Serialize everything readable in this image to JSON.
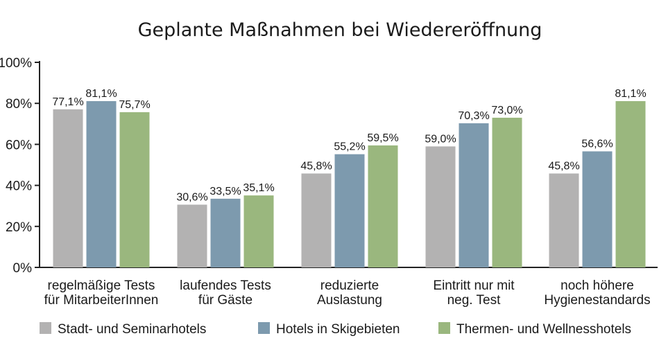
{
  "chart_data": {
    "type": "bar",
    "title": "Geplante Maßnahmen bei Wiedereröffnung",
    "xlabel": "",
    "ylabel": "",
    "ylim": [
      0,
      100
    ],
    "yticks": [
      "0%",
      "20%",
      "40%",
      "60%",
      "80%",
      "100%"
    ],
    "categories": [
      [
        "regelmäßige Tests",
        "für MitarbeiterInnen"
      ],
      [
        "laufendes Tests",
        "für Gäste"
      ],
      [
        "reduzierte",
        "Auslastung"
      ],
      [
        "Eintritt nur mit",
        "neg. Test"
      ],
      [
        "noch höhere",
        "Hygienestandards"
      ]
    ],
    "series": [
      {
        "name": "Stadt- und Seminarhotels",
        "color": "#b3b2b2",
        "values": [
          77.1,
          30.6,
          45.8,
          59.0,
          45.8
        ],
        "labels": [
          "77,1%",
          "30,6%",
          "45,8%",
          "59,0%",
          "45,8%"
        ]
      },
      {
        "name": "Hotels in Skigebieten",
        "color": "#7d9aae",
        "values": [
          81.1,
          33.5,
          55.2,
          70.3,
          56.6
        ],
        "labels": [
          "81,1%",
          "33,5%",
          "55,2%",
          "70,3%",
          "56,6%"
        ]
      },
      {
        "name": "Thermen- und Wellnesshotels",
        "color": "#9ab77e",
        "values": [
          75.7,
          35.1,
          59.5,
          73.0,
          81.1
        ],
        "labels": [
          "75,7%",
          "35,1%",
          "59,5%",
          "73,0%",
          "81,1%"
        ]
      }
    ],
    "legend": "bottom",
    "grid": false
  }
}
